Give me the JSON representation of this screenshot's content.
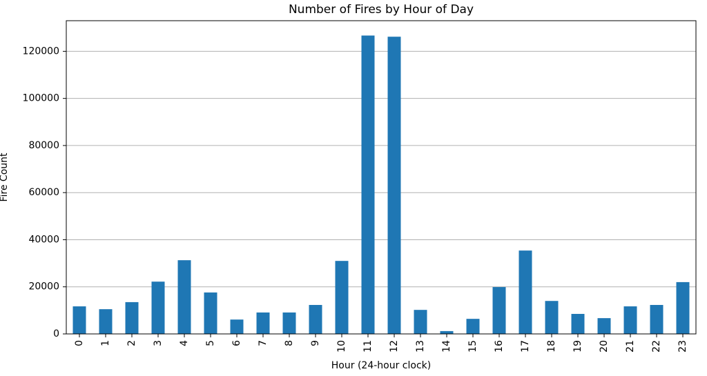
{
  "chart_data": {
    "type": "bar",
    "title": "Number of Fires by Hour of Day",
    "x_label": "Hour (24-hour clock)",
    "y_label": "Fire Count",
    "categories": [
      "0",
      "1",
      "2",
      "3",
      "4",
      "5",
      "6",
      "7",
      "8",
      "9",
      "10",
      "11",
      "12",
      "13",
      "14",
      "15",
      "16",
      "17",
      "18",
      "19",
      "20",
      "21",
      "22",
      "23"
    ],
    "values": [
      11700,
      10500,
      13500,
      22200,
      31300,
      17600,
      6100,
      9100,
      9100,
      12300,
      31000,
      126700,
      126200,
      10200,
      1200,
      6400,
      19900,
      35400,
      14000,
      8500,
      6700,
      11700,
      12300,
      22000
    ],
    "color": "#1f77b4",
    "ylim": [
      0,
      133000
    ],
    "yticks": [
      0,
      20000,
      40000,
      60000,
      80000,
      100000,
      120000
    ],
    "grid": true
  }
}
